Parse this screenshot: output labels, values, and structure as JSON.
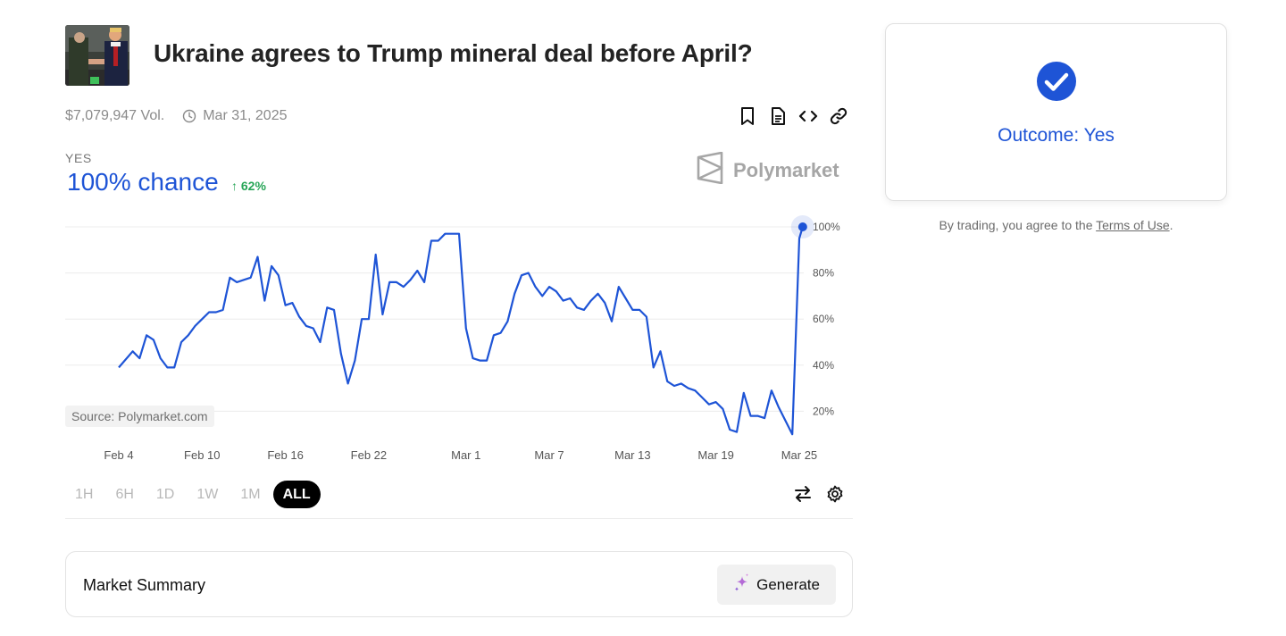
{
  "market": {
    "title": "Ukraine agrees to Trump mineral deal before April?",
    "volume": "$7,079,947 Vol.",
    "end_date": "Mar 31, 2025",
    "outcome_label": "YES",
    "chance": "100% chance",
    "change": "62%",
    "brand": "Polymarket",
    "source": "Source: Polymarket.com"
  },
  "icons": [
    "bookmark-icon",
    "document-icon",
    "code-embed-icon",
    "link-icon",
    "clock-icon",
    "swap-arrows-icon",
    "settings-gear-icon",
    "sparkle-icon",
    "check-circle-icon",
    "polymarket-logo-icon"
  ],
  "colors": {
    "accent": "#1e54d6",
    "positive": "#27a557",
    "active_range": "#000000"
  },
  "ranges": [
    "1H",
    "6H",
    "1D",
    "1W",
    "1M",
    "ALL"
  ],
  "active_range": "ALL",
  "summary": {
    "title": "Market Summary",
    "generate": "Generate"
  },
  "outcome": {
    "text": "Outcome: Yes"
  },
  "terms": {
    "prefix": "By trading, you agree to the ",
    "link": "Terms of Use",
    "suffix": "."
  },
  "chart_data": {
    "type": "line",
    "series": [
      {
        "values": [
          [
            "2025-02-04",
            39
          ],
          [
            "2025-02-05",
            46
          ],
          [
            "2025-02-05 12:00",
            43
          ],
          [
            "2025-02-06",
            53
          ],
          [
            "2025-02-06 12:00",
            51
          ],
          [
            "2025-02-07",
            43
          ],
          [
            "2025-02-07 12:00",
            39
          ],
          [
            "2025-02-08",
            39
          ],
          [
            "2025-02-08 12:00",
            50
          ],
          [
            "2025-02-09",
            53
          ],
          [
            "2025-02-09 12:00",
            57
          ],
          [
            "2025-02-10",
            60
          ],
          [
            "2025-02-10 12:00",
            63
          ],
          [
            "2025-02-11",
            63
          ],
          [
            "2025-02-11 12:00",
            64
          ],
          [
            "2025-02-12",
            78
          ],
          [
            "2025-02-12 12:00",
            76
          ],
          [
            "2025-02-13",
            77
          ],
          [
            "2025-02-13 12:00",
            78
          ],
          [
            "2025-02-14",
            87
          ],
          [
            "2025-02-14 12:00",
            68
          ],
          [
            "2025-02-15",
            83
          ],
          [
            "2025-02-15 12:00",
            79
          ],
          [
            "2025-02-16",
            66
          ],
          [
            "2025-02-16 12:00",
            67
          ],
          [
            "2025-02-17",
            61
          ],
          [
            "2025-02-17 12:00",
            57
          ],
          [
            "2025-02-18",
            56
          ],
          [
            "2025-02-18 12:00",
            50
          ],
          [
            "2025-02-19",
            65
          ],
          [
            "2025-02-19 12:00",
            64
          ],
          [
            "2025-02-20",
            45
          ],
          [
            "2025-02-20 12:00",
            32
          ],
          [
            "2025-02-21",
            42
          ],
          [
            "2025-02-21 12:00",
            60
          ],
          [
            "2025-02-22",
            60
          ],
          [
            "2025-02-22 12:00",
            88
          ],
          [
            "2025-02-23",
            62
          ],
          [
            "2025-02-23 12:00",
            76
          ],
          [
            "2025-02-24",
            76
          ],
          [
            "2025-02-24 12:00",
            74
          ],
          [
            "2025-02-25",
            77
          ],
          [
            "2025-02-25 12:00",
            81
          ],
          [
            "2025-02-26",
            76
          ],
          [
            "2025-02-26 12:00",
            94
          ],
          [
            "2025-02-27",
            94
          ],
          [
            "2025-02-27 12:00",
            97
          ],
          [
            "2025-02-28",
            97
          ],
          [
            "2025-02-28 12:00",
            97
          ],
          [
            "2025-03-01",
            56
          ],
          [
            "2025-03-01 12:00",
            43
          ],
          [
            "2025-03-02",
            42
          ],
          [
            "2025-03-02 12:00",
            42
          ],
          [
            "2025-03-03",
            53
          ],
          [
            "2025-03-03 12:00",
            54
          ],
          [
            "2025-03-04",
            59
          ],
          [
            "2025-03-04 12:00",
            71
          ],
          [
            "2025-03-05",
            79
          ],
          [
            "2025-03-05 12:00",
            80
          ],
          [
            "2025-03-06",
            74
          ],
          [
            "2025-03-06 12:00",
            70
          ],
          [
            "2025-03-07",
            74
          ],
          [
            "2025-03-07 12:00",
            72
          ],
          [
            "2025-03-08",
            68
          ],
          [
            "2025-03-08 12:00",
            69
          ],
          [
            "2025-03-09",
            65
          ],
          [
            "2025-03-09 12:00",
            64
          ],
          [
            "2025-03-10",
            68
          ],
          [
            "2025-03-10 12:00",
            71
          ],
          [
            "2025-03-11",
            67
          ],
          [
            "2025-03-11 12:00",
            59
          ],
          [
            "2025-03-12",
            74
          ],
          [
            "2025-03-12 12:00",
            69
          ],
          [
            "2025-03-13",
            64
          ],
          [
            "2025-03-13 12:00",
            64
          ],
          [
            "2025-03-14",
            61
          ],
          [
            "2025-03-14 12:00",
            39
          ],
          [
            "2025-03-15",
            46
          ],
          [
            "2025-03-15 12:00",
            33
          ],
          [
            "2025-03-16",
            31
          ],
          [
            "2025-03-16 12:00",
            32
          ],
          [
            "2025-03-17",
            30
          ],
          [
            "2025-03-17 12:00",
            29
          ],
          [
            "2025-03-18",
            26
          ],
          [
            "2025-03-18 12:00",
            23
          ],
          [
            "2025-03-19",
            24
          ],
          [
            "2025-03-19 12:00",
            21
          ],
          [
            "2025-03-20",
            12
          ],
          [
            "2025-03-20 12:00",
            11
          ],
          [
            "2025-03-21",
            28
          ],
          [
            "2025-03-21 12:00",
            18
          ],
          [
            "2025-03-22",
            18
          ],
          [
            "2025-03-22 12:00",
            17
          ],
          [
            "2025-03-23",
            29
          ],
          [
            "2025-03-23 12:00",
            22
          ],
          [
            "2025-03-24",
            16
          ],
          [
            "2025-03-24 12:00",
            10
          ],
          [
            "2025-03-25",
            95
          ],
          [
            "2025-03-25 06:00",
            100
          ]
        ]
      }
    ],
    "x_ticks": [
      [
        "2025-02-04",
        "Feb 4"
      ],
      [
        "2025-02-10",
        "Feb 10"
      ],
      [
        "2025-02-16",
        "Feb 16"
      ],
      [
        "2025-02-22",
        "Feb 22"
      ],
      [
        "2025-03-01",
        "Mar 1"
      ],
      [
        "2025-03-07",
        "Mar 7"
      ],
      [
        "2025-03-13",
        "Mar 13"
      ],
      [
        "2025-03-19",
        "Mar 19"
      ],
      [
        "2025-03-25",
        "Mar 25"
      ]
    ],
    "y_ticks": [
      [
        20,
        "20%"
      ],
      [
        40,
        "40%"
      ],
      [
        60,
        "60%"
      ],
      [
        80,
        "80%"
      ],
      [
        100,
        "100%"
      ]
    ],
    "ylim": [
      0,
      100
    ],
    "grid": true,
    "line_color": "#1e54d6"
  }
}
